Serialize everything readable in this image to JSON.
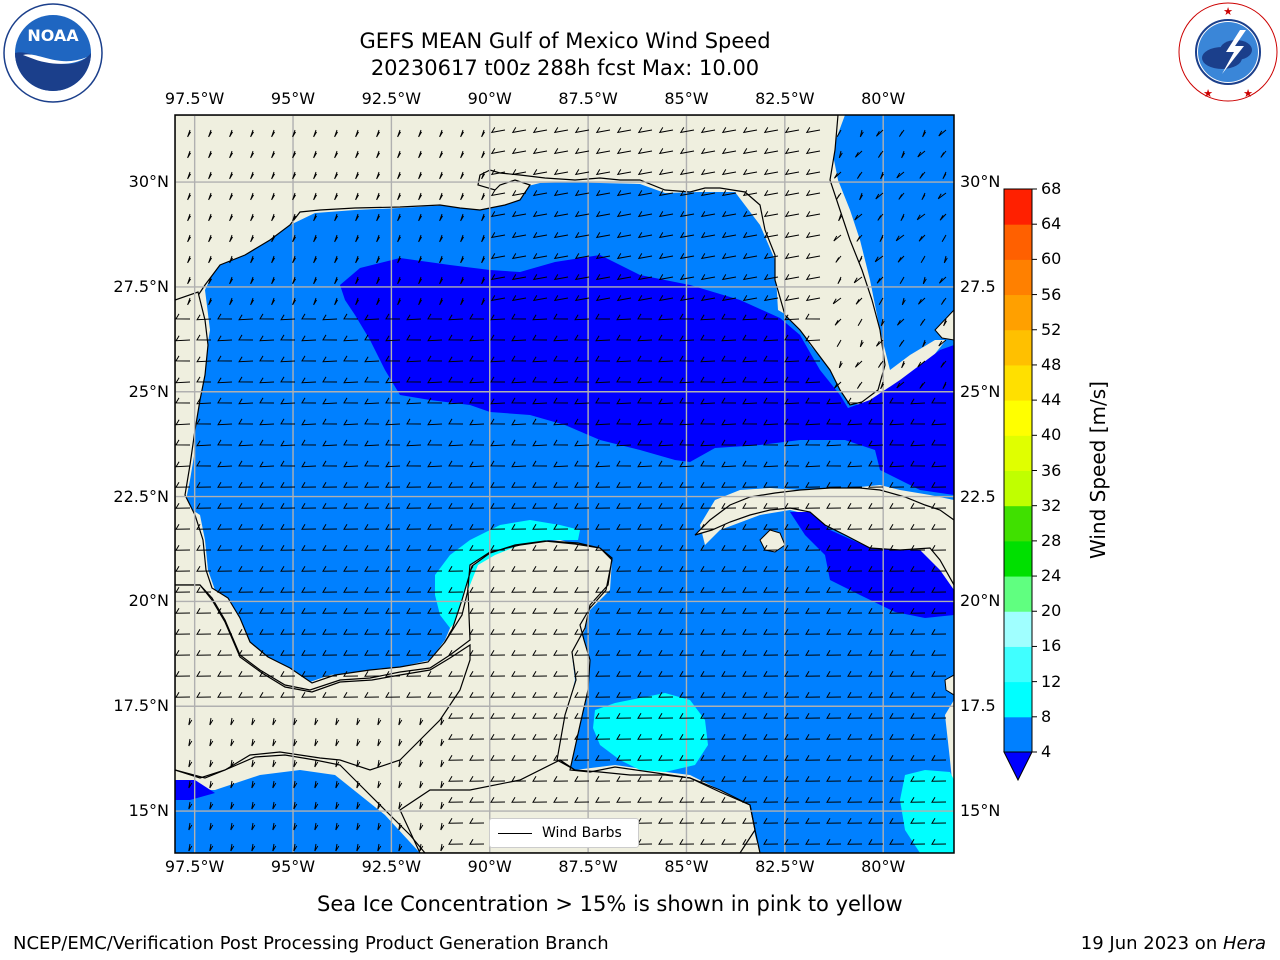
{
  "title": {
    "line1": "GEFS MEAN Gulf of Mexico Wind Speed",
    "line2": "20230617 t00z 288h fcst   Max: 10.00"
  },
  "logos": {
    "left": {
      "icon": "noaa-logo-icon",
      "text": "NOAA",
      "ring": "NATIONAL OCEANIC AND ATMOSPHERIC ADMINISTRATION · U.S. DEPARTMENT OF COMMERCE"
    },
    "right": {
      "icon": "nws-logo-icon",
      "ring": "NATIONAL WEATHER SERVICE"
    }
  },
  "map": {
    "lon_labels": [
      "97.5°W",
      "95°W",
      "92.5°W",
      "90°W",
      "87.5°W",
      "85°W",
      "82.5°W",
      "80°W"
    ],
    "lat_labels_left": [
      "30°N",
      "27.5°N",
      "25°N",
      "22.5°N",
      "20°N",
      "17.5°N",
      "15°N"
    ],
    "lat_labels_right": [
      "30°N",
      "27.5",
      "25°N",
      "22.5",
      "20°N",
      "17.5",
      "15°N"
    ],
    "lon_range": [
      -98,
      -78.2
    ],
    "lat_range": [
      14,
      31.6
    ],
    "land_color": "#efefdf",
    "grid_color": "#b0b0b0"
  },
  "colorbar": {
    "title": "Wind Speed [m/s]",
    "levels": [
      "4",
      "8",
      "12",
      "16",
      "20",
      "24",
      "28",
      "32",
      "36",
      "40",
      "44",
      "48",
      "52",
      "56",
      "60",
      "64",
      "68"
    ],
    "colors": [
      "#0080ff",
      "#00ffff",
      "#40ffff",
      "#a0ffff",
      "#60ff80",
      "#00e000",
      "#40e000",
      "#c0ff00",
      "#e0ff00",
      "#ffff00",
      "#ffe000",
      "#ffc000",
      "#ffa000",
      "#ff8000",
      "#ff6000",
      "#ff2000"
    ],
    "under_color": "#0000ff"
  },
  "legend": {
    "label": "Wind Barbs"
  },
  "footer": {
    "bottom_note": "Sea Ice Concentration > 15% is shown in pink to yellow",
    "left": "NCEP/EMC/Verification Post Processing Product Generation Branch",
    "right_date": "19 Jun 2023 on ",
    "right_host": "Hera"
  }
}
